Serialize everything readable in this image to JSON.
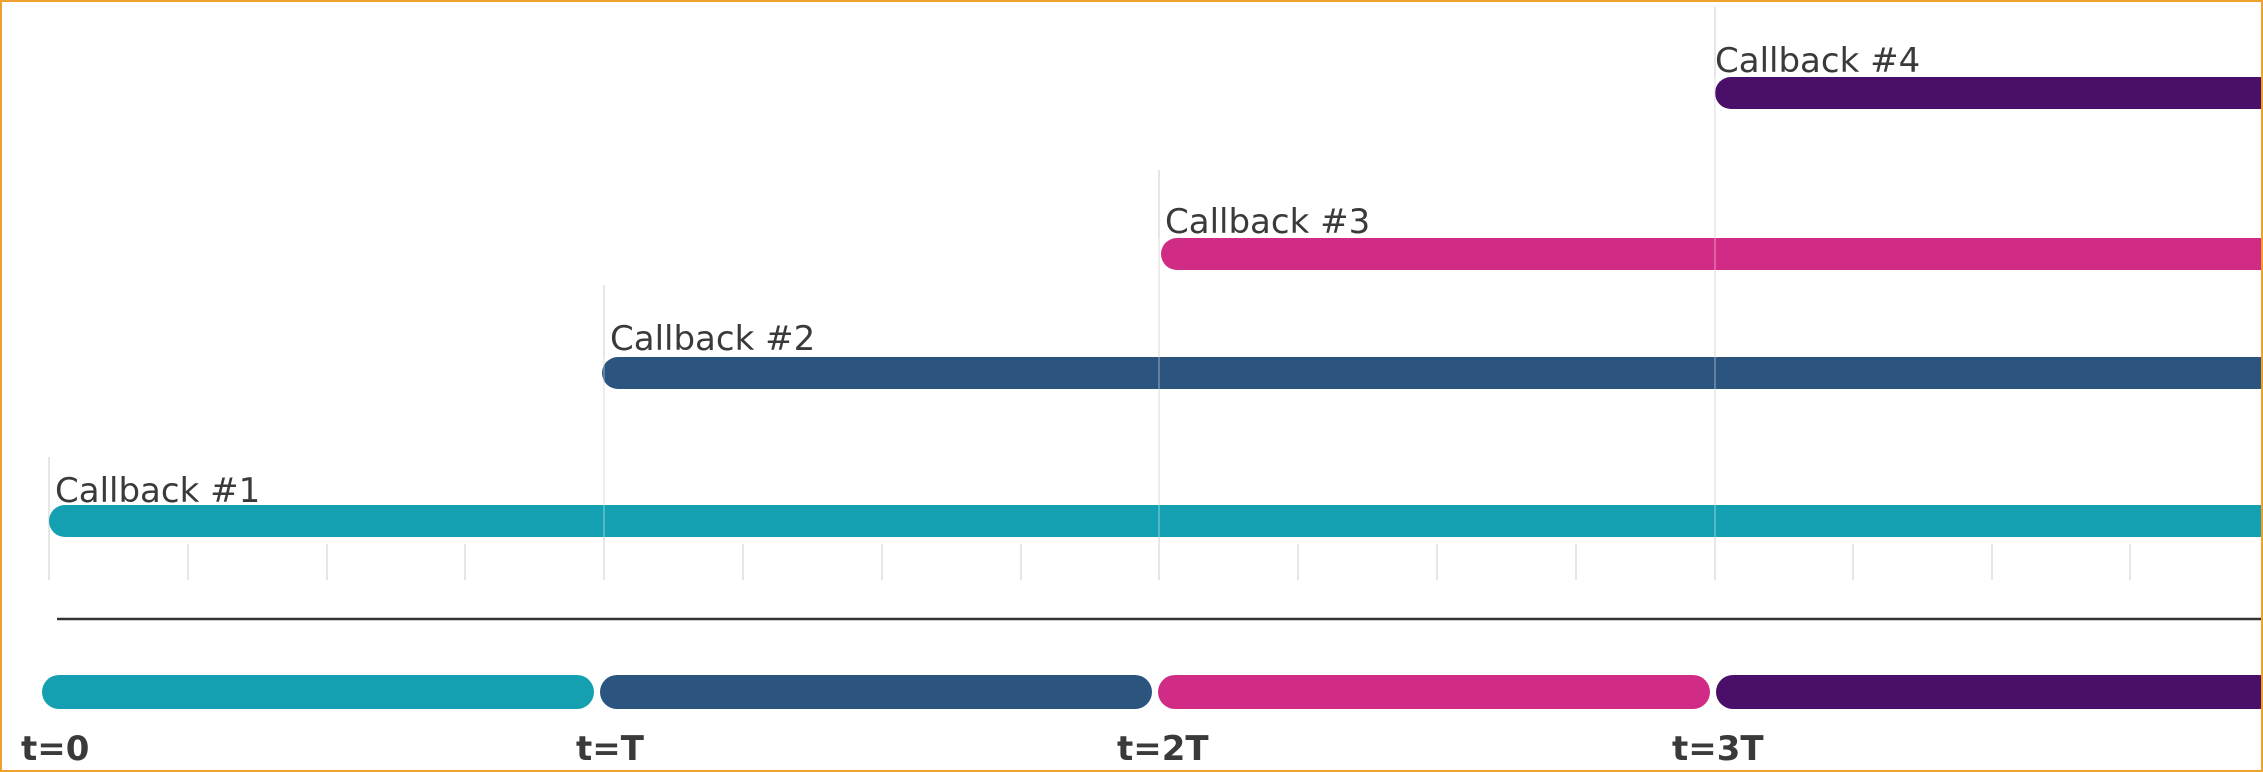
{
  "colors": {
    "frame": "#f0a030",
    "callback_1": "#15a0b2",
    "callback_2": "#2b547f",
    "callback_3": "#d12c85",
    "callback_4": "#4a0f68",
    "text": "#3a3a3a",
    "axis": "#333333",
    "grid": "#dddddd"
  },
  "callbacks": [
    {
      "label": "Callback #1",
      "start_period": 0
    },
    {
      "label": "Callback #2",
      "start_period": 1
    },
    {
      "label": "Callback #3",
      "start_period": 2
    },
    {
      "label": "Callback #4",
      "start_period": 3
    }
  ],
  "time_marks": [
    "t=0",
    "t=T",
    "t=2T",
    "t=3T"
  ],
  "ticks_per_period": 4
}
